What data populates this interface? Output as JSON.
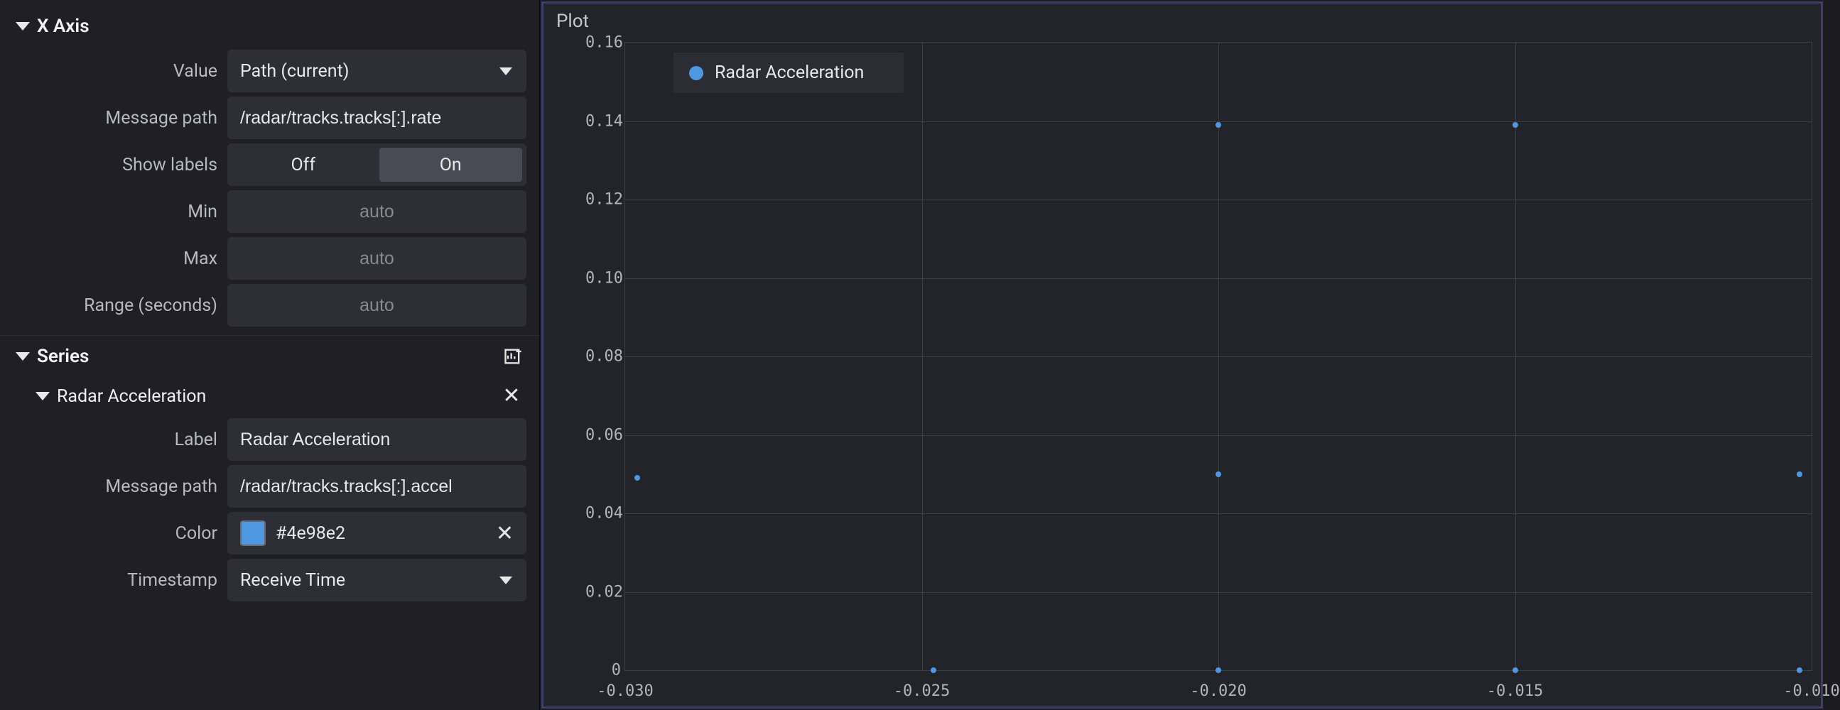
{
  "sidebar": {
    "xaxis": {
      "section_title": "X Axis",
      "value_label": "Value",
      "value_selected": "Path (current)",
      "message_path_label": "Message path",
      "message_path_value": "/radar/tracks.tracks[:].rate",
      "show_labels_label": "Show labels",
      "show_labels_off": "Off",
      "show_labels_on": "On",
      "show_labels_active": "On",
      "min_label": "Min",
      "min_placeholder": "auto",
      "max_label": "Max",
      "max_placeholder": "auto",
      "range_label": "Range (seconds)",
      "range_placeholder": "auto"
    },
    "series": {
      "section_title": "Series",
      "items": [
        {
          "name": "Radar Acceleration",
          "label_label": "Label",
          "label_value": "Radar Acceleration",
          "message_path_label": "Message path",
          "message_path_value": "/radar/tracks.tracks[:].accel",
          "color_label": "Color",
          "color_value": "#4e98e2",
          "timestamp_label": "Timestamp",
          "timestamp_value": "Receive Time"
        }
      ]
    }
  },
  "plot": {
    "title": "Plot",
    "legend_label": "Radar Acceleration",
    "legend_color": "#4e98e2",
    "background_color": "#23232a",
    "grid_color": "#3e3e48",
    "text_color": "#b4b4be",
    "yaxis": {
      "min": 0,
      "max": 0.16,
      "ticks": [
        "0.16",
        "0.14",
        "0.12",
        "0.10",
        "0.08",
        "0.06",
        "0.04",
        "0.02",
        "0"
      ]
    },
    "xaxis": {
      "min": -0.03,
      "max": -0.01,
      "ticks": [
        "-0.030",
        "-0.025",
        "-0.020",
        "-0.015",
        "-0.010"
      ]
    },
    "points": [
      {
        "x": -0.0298,
        "y": 0.049
      },
      {
        "x": -0.0248,
        "y": 0.0
      },
      {
        "x": -0.02,
        "y": 0.139
      },
      {
        "x": -0.02,
        "y": 0.05
      },
      {
        "x": -0.02,
        "y": 0.0
      },
      {
        "x": -0.015,
        "y": 0.139
      },
      {
        "x": -0.015,
        "y": 0.0
      },
      {
        "x": -0.0102,
        "y": 0.05
      },
      {
        "x": -0.0102,
        "y": 0.0
      }
    ]
  },
  "colors": {
    "panel_bg": "#1f1f25",
    "input_bg": "#2e2e36",
    "border": "#3d3d6b"
  }
}
